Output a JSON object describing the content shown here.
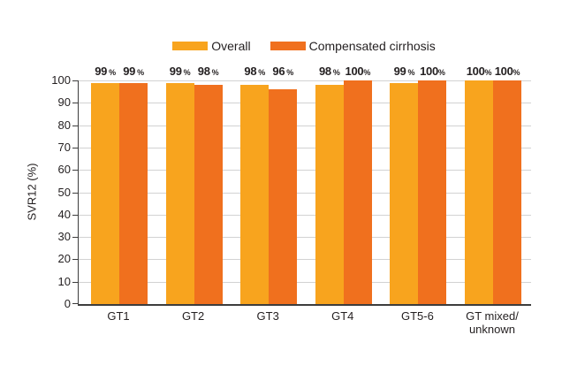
{
  "figure": {
    "background": "#FFFFFF"
  },
  "legend": {
    "items": [
      {
        "label": "Overall",
        "color": "#F8A41E"
      },
      {
        "label": "Compensated cirrhosis",
        "color": "#F0701E"
      }
    ]
  },
  "chart_data": {
    "type": "bar",
    "title": "",
    "xlabel": "",
    "ylabel": "SVR12 (%)",
    "ylim": [
      0,
      100
    ],
    "yticks": [
      0,
      10,
      20,
      30,
      40,
      50,
      60,
      70,
      80,
      90,
      100
    ],
    "grid": "horizontal-light",
    "legend_position": "top-center",
    "value_label_suffix": "%",
    "categories": [
      "GT1",
      "GT2",
      "GT3",
      "GT4",
      "GT5-6",
      "GT mixed/\nunknown"
    ],
    "series": [
      {
        "name": "Overall",
        "color": "#F8A41E",
        "values": [
          99,
          99,
          98,
          98,
          99,
          100
        ]
      },
      {
        "name": "Compensated cirrhosis",
        "color": "#F0701E",
        "values": [
          99,
          98,
          96,
          100,
          100,
          100
        ]
      }
    ]
  },
  "colors": {
    "axis": "#3D3D3D",
    "gridline": "#D2D2D2",
    "text": "#231F20"
  }
}
